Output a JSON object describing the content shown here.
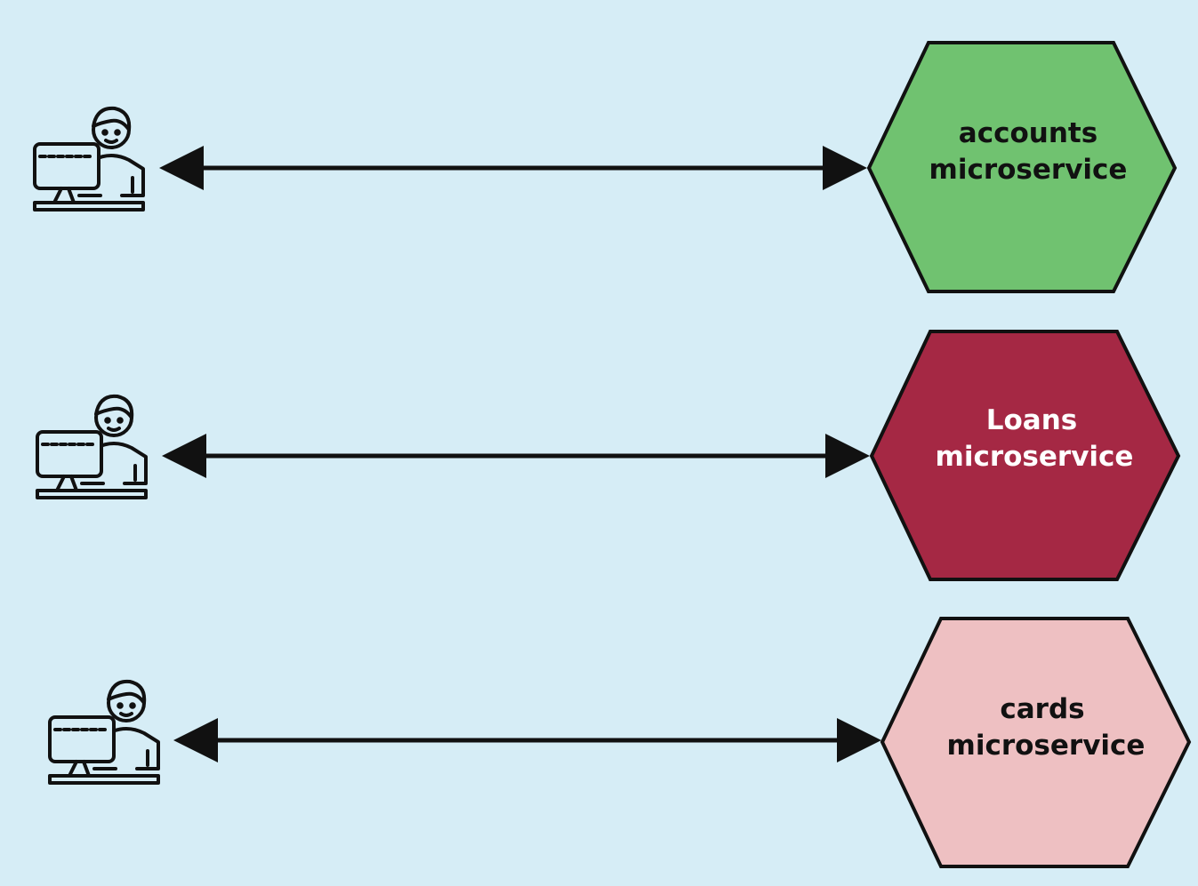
{
  "diagram": {
    "background": "#d6edf6",
    "rows": [
      {
        "service_line1": "accounts",
        "service_line2": "microservice",
        "fill": "#70c270",
        "text_color": "#111111",
        "user_icon": "user-at-computer-icon",
        "connector": "bidirectional-arrow"
      },
      {
        "service_line1": "Loans",
        "service_line2": "microservice",
        "fill": "#a52844",
        "text_color": "#ffffff",
        "user_icon": "user-at-computer-icon",
        "connector": "bidirectional-arrow"
      },
      {
        "service_line1": "cards",
        "service_line2": "microservice",
        "fill": "#eec0c2",
        "text_color": "#111111",
        "user_icon": "user-at-computer-icon",
        "connector": "bidirectional-arrow"
      }
    ]
  }
}
